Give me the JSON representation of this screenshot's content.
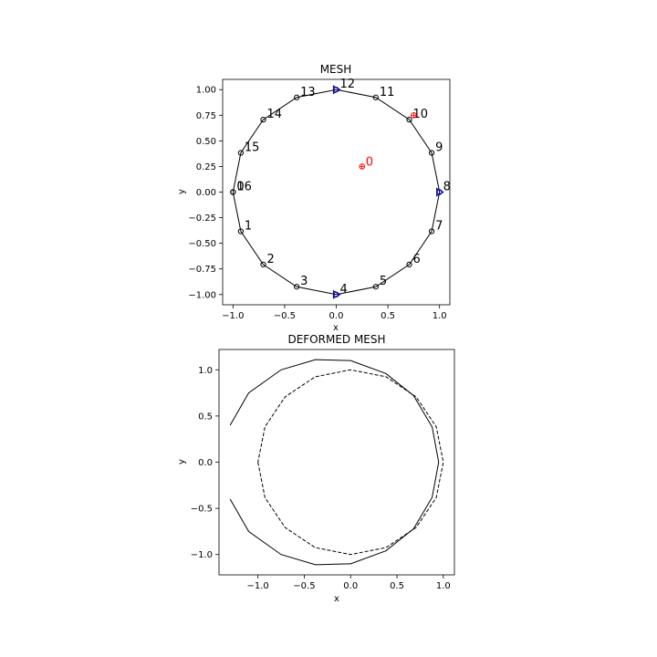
{
  "chart_data": [
    {
      "type": "line",
      "title": "MESH",
      "xlabel": "x",
      "ylabel": "y",
      "xlim": [
        -1.1,
        1.1
      ],
      "ylim": [
        -1.1,
        1.1
      ],
      "grid": false,
      "xticks": [
        -1.0,
        -0.5,
        0.0,
        0.5,
        1.0
      ],
      "xtick_labels": [
        "−1.0",
        "−0.5",
        "0.0",
        "0.5",
        "1.0"
      ],
      "yticks": [
        -1.0,
        -0.75,
        -0.5,
        -0.25,
        0.0,
        0.25,
        0.5,
        0.75,
        1.0
      ],
      "ytick_labels": [
        "−1.00",
        "−0.75",
        "−0.50",
        "−0.25",
        "0.00",
        "0.25",
        "0.50",
        "0.75",
        "1.00"
      ],
      "nodes": [
        {
          "id": "0",
          "x": -1.0,
          "y": 0.0
        },
        {
          "id": "1",
          "x": -0.924,
          "y": -0.383
        },
        {
          "id": "2",
          "x": -0.707,
          "y": -0.707
        },
        {
          "id": "3",
          "x": -0.383,
          "y": -0.924
        },
        {
          "id": "4",
          "x": 0.0,
          "y": -1.0
        },
        {
          "id": "5",
          "x": 0.383,
          "y": -0.924
        },
        {
          "id": "6",
          "x": 0.707,
          "y": -0.707
        },
        {
          "id": "7",
          "x": 0.924,
          "y": -0.383
        },
        {
          "id": "8",
          "x": 1.0,
          "y": 0.0
        },
        {
          "id": "9",
          "x": 0.924,
          "y": 0.383
        },
        {
          "id": "10",
          "x": 0.707,
          "y": 0.707
        },
        {
          "id": "11",
          "x": 0.383,
          "y": 0.924
        },
        {
          "id": "12",
          "x": 0.0,
          "y": 1.0
        },
        {
          "id": "13",
          "x": -0.383,
          "y": 0.924
        },
        {
          "id": "14",
          "x": -0.707,
          "y": 0.707
        },
        {
          "id": "15",
          "x": -0.924,
          "y": 0.383
        },
        {
          "id": "16",
          "x": -1.0,
          "y": 0.0
        }
      ],
      "supports": [
        {
          "node": "4",
          "x": 0.0,
          "y": -1.0
        },
        {
          "node": "8",
          "x": 1.0,
          "y": 0.0
        },
        {
          "node": "12",
          "x": 0.0,
          "y": 1.0
        }
      ],
      "loads": [
        {
          "label": "0",
          "x": 0.25,
          "y": 0.25
        },
        {
          "label": "",
          "x": 0.75,
          "y": 0.75
        }
      ],
      "colors": {
        "mesh": "#000000",
        "support": "#0000cc",
        "load": "#ff0000"
      }
    },
    {
      "type": "line",
      "title": "DEFORMED MESH",
      "xlabel": "x",
      "ylabel": "y",
      "xlim": [
        -1.42,
        1.12
      ],
      "ylim": [
        -1.22,
        1.22
      ],
      "grid": false,
      "xticks": [
        -1.0,
        -0.5,
        0.0,
        0.5,
        1.0
      ],
      "xtick_labels": [
        "−1.0",
        "−0.5",
        "0.0",
        "0.5",
        "1.0"
      ],
      "yticks": [
        -1.0,
        -0.5,
        0.0,
        0.5,
        1.0
      ],
      "ytick_labels": [
        "−1.0",
        "−0.5",
        "0.0",
        "0.5",
        "1.0"
      ],
      "series": [
        {
          "style": "solid",
          "x": [
            -1.3,
            -1.1,
            -0.75,
            -0.38,
            0.0,
            0.38,
            0.68,
            0.88,
            0.95,
            0.88,
            0.68,
            0.38,
            0.0,
            -0.38,
            -0.75,
            -1.1,
            -1.3
          ],
          "y": [
            -0.4,
            -0.75,
            -1.0,
            -1.11,
            -1.1,
            -0.96,
            -0.72,
            -0.38,
            0.0,
            0.38,
            0.72,
            0.96,
            1.1,
            1.11,
            1.0,
            0.75,
            0.4
          ]
        },
        {
          "style": "dashed",
          "x": [
            -1.0,
            -0.924,
            -0.707,
            -0.383,
            0.0,
            0.383,
            0.707,
            0.924,
            1.0,
            0.924,
            0.707,
            0.383,
            0.0,
            -0.383,
            -0.707,
            -0.924,
            -1.0
          ],
          "y": [
            0.0,
            -0.383,
            -0.707,
            -0.924,
            -1.0,
            -0.924,
            -0.707,
            -0.383,
            0.0,
            0.383,
            0.707,
            0.924,
            1.0,
            0.924,
            0.707,
            0.383,
            0.0
          ]
        }
      ]
    }
  ]
}
